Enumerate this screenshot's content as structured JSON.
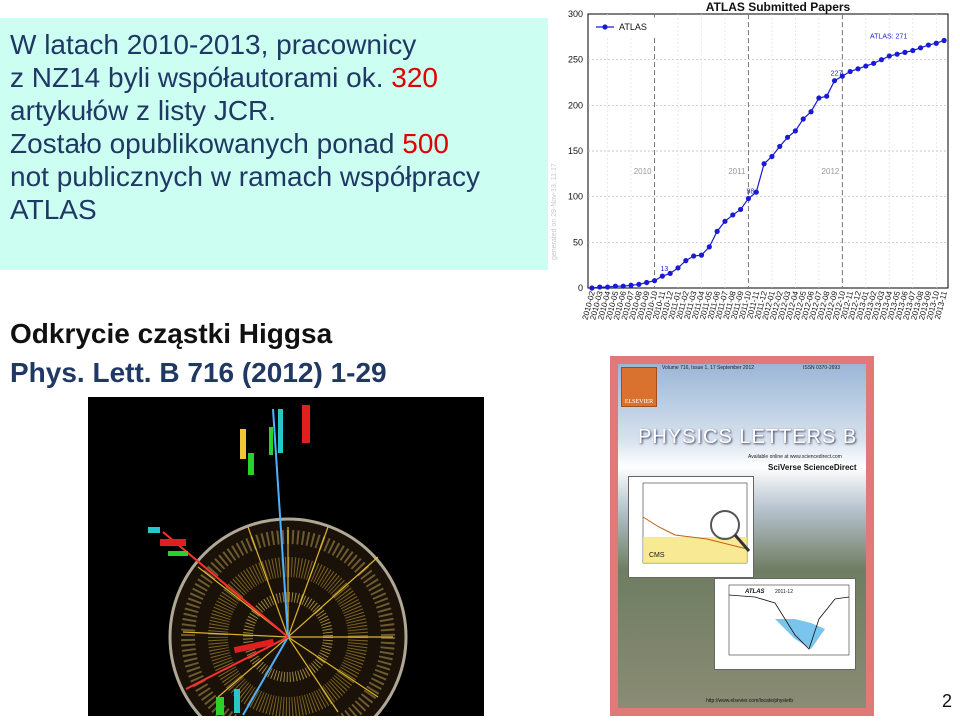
{
  "textbox": {
    "line1": "W latach 2010-2013, pracownicy",
    "line2a": "z NZ14 byli współautorami ok.",
    "line2_num": "320",
    "line3": "artykułów z listy JCR.",
    "line4a": "Zostało opublikowanych ponad",
    "line4_num": "500",
    "line5": "not publicznych w ramach współpracy",
    "line6": "ATLAS"
  },
  "higgs": {
    "title": "Odkrycie cząstki Higgsa",
    "reference": "Phys. Lett. B 716 (2012) 1-29"
  },
  "cover": {
    "header": "Volume 716, Issue 1, 17 September 2012",
    "issn": "ISSN 0370-2693",
    "publisher": "ELSEVIER",
    "journal": "PHYSICS LETTERS B",
    "online": "Available online at www.sciencedirect.com",
    "sciverse": "SciVerse ScienceDirect",
    "url": "http://www.elsevier.com/locate/physletb",
    "cms_label": "CMS",
    "atlas_label": "ATLAS",
    "atlas_period": "2011-12"
  },
  "slide_number": "2",
  "chart_data": {
    "type": "line",
    "title": "ATLAS Submitted Papers",
    "xlabel": "",
    "ylabel": "",
    "ylim": [
      0,
      300
    ],
    "yticks": [
      "0",
      "50",
      "100",
      "150",
      "200",
      "250",
      "300"
    ],
    "grid": true,
    "legend": {
      "entries": [
        "ATLAS"
      ],
      "placement": "top-left"
    },
    "color": "#1a1ad6",
    "watermark": "generated on 29-Nov-13, 11:17",
    "year_labels": [
      "2010",
      "2011",
      "2012"
    ],
    "year_marker_x": [
      "2010-10",
      "2011-10",
      "2012-10"
    ],
    "annotations": [
      {
        "x": "2010-11",
        "y": 13,
        "text": "13"
      },
      {
        "x": "2011-10",
        "y": 98,
        "text": "98"
      },
      {
        "x": "2012-09",
        "y": 227,
        "text": "227"
      },
      {
        "x": "2013-11",
        "y": 271,
        "text": "ATLAS: 271"
      }
    ],
    "x": [
      "2010-02",
      "2010-03",
      "2010-04",
      "2010-05",
      "2010-06",
      "2010-07",
      "2010-08",
      "2010-09",
      "2010-10",
      "2010-11",
      "2010-12",
      "2011-01",
      "2011-02",
      "2011-03",
      "2011-04",
      "2011-05",
      "2011-06",
      "2011-07",
      "2011-08",
      "2011-09",
      "2011-10",
      "2011-11",
      "2011-12",
      "2012-01",
      "2012-02",
      "2012-03",
      "2012-04",
      "2012-05",
      "2012-06",
      "2012-07",
      "2012-08",
      "2012-09",
      "2012-10",
      "2012-11",
      "2012-12",
      "2013-01",
      "2013-02",
      "2013-03",
      "2013-04",
      "2013-05",
      "2013-06",
      "2013-07",
      "2013-08",
      "2013-09",
      "2013-10",
      "2013-11"
    ],
    "series": [
      {
        "name": "ATLAS",
        "values": [
          0,
          1,
          1,
          2,
          2,
          3,
          4,
          6,
          8,
          13,
          16,
          22,
          30,
          35,
          36,
          45,
          62,
          73,
          80,
          86,
          98,
          105,
          136,
          144,
          155,
          165,
          172,
          185,
          193,
          208,
          210,
          227,
          232,
          237,
          240,
          243,
          246,
          250,
          254,
          256,
          258,
          260,
          263,
          266,
          268,
          271
        ]
      }
    ]
  }
}
